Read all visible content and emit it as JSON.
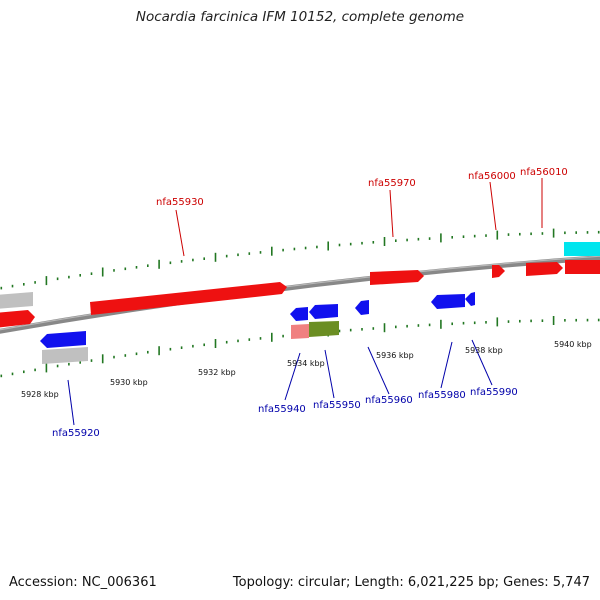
{
  "title": "Nocardia farcinica IFM 10152, complete genome",
  "accession": "Accession: NC_006361",
  "summary": "Topology: circular; Length: 6,021,225 bp; Genes: 5,747",
  "colors": {
    "forward_gene": "#ee1111",
    "reverse_gene": "#1111ee",
    "forward_label": "#cc0000",
    "reverse_label": "#0000aa",
    "grey_feature": "#c0c0c0",
    "cyan_feature": "#00e5ee",
    "pink_feature": "#f08080",
    "olive_feature": "#6b8e23",
    "backbone": "#888888",
    "ticks": "#227722"
  },
  "scale_labels": [
    "5928 kbp",
    "5930 kbp",
    "5932 kbp",
    "5934 kbp",
    "5936 kbp",
    "5938 kbp",
    "5940 kbp"
  ],
  "forward_gene_labels": [
    "nfa55930",
    "nfa55970",
    "nfa56000",
    "nfa56010"
  ],
  "reverse_gene_labels": [
    "nfa55920",
    "nfa55940",
    "nfa55950",
    "nfa55960",
    "nfa55980",
    "nfa55990"
  ]
}
